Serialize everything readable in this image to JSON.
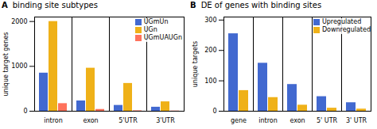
{
  "chart_data": [
    {
      "type": "bar",
      "title": "binding site subtypes",
      "ylabel": "unique target genes",
      "annotations": [
        "A"
      ],
      "categories": [
        "intron",
        "exon",
        "5'UTR",
        "3'UTR"
      ],
      "series": [
        {
          "name": "UGmUn",
          "values": [
            850,
            230,
            130,
            90
          ]
        },
        {
          "name": "UGn",
          "values": [
            2000,
            960,
            620,
            210
          ]
        },
        {
          "name": "UGmUAUGn",
          "values": [
            170,
            40,
            10,
            5
          ]
        }
      ],
      "ylim": [
        0,
        2100
      ],
      "yticks": [
        0,
        1000,
        2000
      ],
      "legend": "upper right"
    },
    {
      "type": "bar",
      "title": "DE of genes with binding sites",
      "ylabel": "unique targets",
      "annotations": [
        "B"
      ],
      "categories": [
        "gene",
        "intron",
        "exon",
        "5' UTR",
        "3' UTR"
      ],
      "series": [
        {
          "name": "Upregulated",
          "values": [
            255,
            158,
            88,
            48,
            28
          ]
        },
        {
          "name": "Downregulated",
          "values": [
            68,
            45,
            20,
            10,
            7
          ]
        }
      ],
      "ylim": [
        0,
        310
      ],
      "yticks": [
        0,
        100,
        200,
        300
      ],
      "legend": "upper right"
    }
  ]
}
